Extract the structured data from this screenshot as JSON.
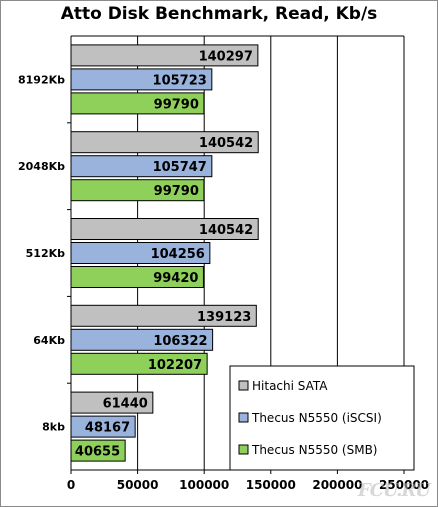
{
  "chart_data": {
    "type": "bar",
    "orientation": "horizontal",
    "title": "Atto Disk Benchmark, Read, Kb/s",
    "categories": [
      "8192Kb",
      "2048Kb",
      "512Kb",
      "64Kb",
      "8kb"
    ],
    "series": [
      {
        "name": "Hitachi SATA",
        "color": "#c0c0c0",
        "values": [
          140297,
          140542,
          140542,
          139123,
          61440
        ]
      },
      {
        "name": "Thecus N5550 (iSCSI)",
        "color": "#99b3dd",
        "values": [
          105723,
          105747,
          104256,
          106322,
          48167
        ]
      },
      {
        "name": "Thecus N5550 (SMB)",
        "color": "#8ed05a",
        "values": [
          99790,
          99790,
          99420,
          102207,
          40655
        ]
      }
    ],
    "xlim": [
      0,
      250000
    ],
    "xticks": [
      "0",
      "50000",
      "100000",
      "150000",
      "200000",
      "250000"
    ],
    "grid": "vertical",
    "legend_position": "lower-right"
  },
  "watermark": "FCU.RU"
}
